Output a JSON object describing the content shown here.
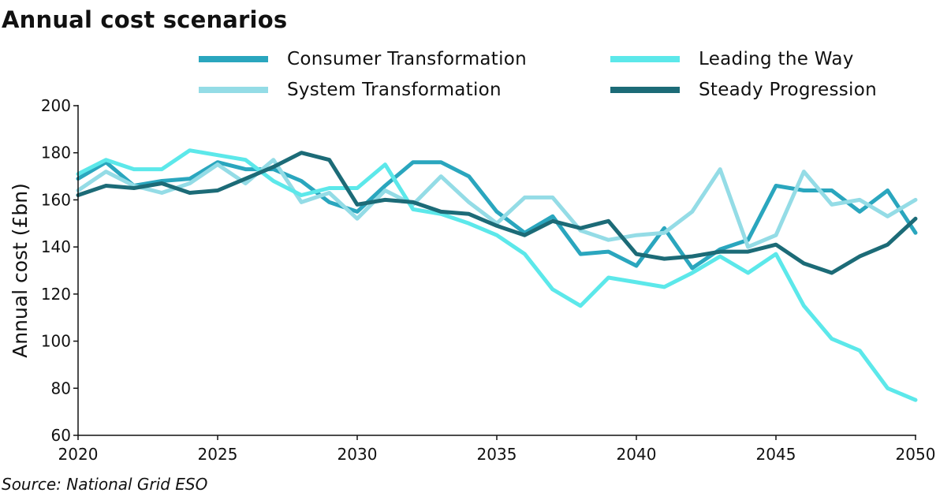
{
  "chart_data": {
    "type": "line",
    "title": "Annual cost scenarios",
    "xlabel": "",
    "ylabel": "Annual cost (£bn)",
    "xlim": [
      2020,
      2050
    ],
    "ylim": [
      60,
      200
    ],
    "xticks": [
      2020,
      2025,
      2030,
      2035,
      2040,
      2045,
      2050
    ],
    "yticks": [
      60,
      80,
      100,
      120,
      140,
      160,
      180,
      200
    ],
    "grid": false,
    "legend_position": "top",
    "x": [
      2020,
      2021,
      2022,
      2023,
      2024,
      2025,
      2026,
      2027,
      2028,
      2029,
      2030,
      2031,
      2032,
      2033,
      2034,
      2035,
      2036,
      2037,
      2038,
      2039,
      2040,
      2041,
      2042,
      2043,
      2044,
      2045,
      2046,
      2047,
      2048,
      2049,
      2050
    ],
    "series": [
      {
        "name": "Consumer Transformation",
        "color": "#2aa6be",
        "values": [
          169,
          176,
          166,
          168,
          169,
          176,
          173,
          173,
          168,
          159,
          155,
          166,
          176,
          176,
          170,
          155,
          146,
          153,
          137,
          138,
          132,
          148,
          131,
          139,
          143,
          166,
          164,
          164,
          155,
          164,
          146
        ]
      },
      {
        "name": "System Transformation",
        "color": "#94dce6",
        "values": [
          164,
          172,
          166,
          163,
          167,
          175,
          167,
          177,
          159,
          163,
          152,
          164,
          158,
          170,
          159,
          150,
          161,
          161,
          147,
          143,
          145,
          146,
          155,
          173,
          140,
          145,
          172,
          158,
          160,
          153,
          160
        ]
      },
      {
        "name": "Leading the Way",
        "color": "#5ce8ea",
        "values": [
          171,
          177,
          173,
          173,
          181,
          179,
          177,
          168,
          162,
          165,
          165,
          175,
          156,
          154,
          150,
          145,
          137,
          122,
          115,
          127,
          125,
          123,
          129,
          136,
          129,
          137,
          115,
          101,
          96,
          80,
          75
        ]
      },
      {
        "name": "Steady Progression",
        "color": "#1c6b77",
        "values": [
          162,
          166,
          165,
          167,
          163,
          164,
          169,
          174,
          180,
          177,
          158,
          160,
          159,
          155,
          154,
          149,
          145,
          151,
          148,
          151,
          137,
          135,
          136,
          138,
          138,
          141,
          133,
          129,
          136,
          141,
          152
        ]
      }
    ]
  },
  "source": "Source: National Grid ESO"
}
